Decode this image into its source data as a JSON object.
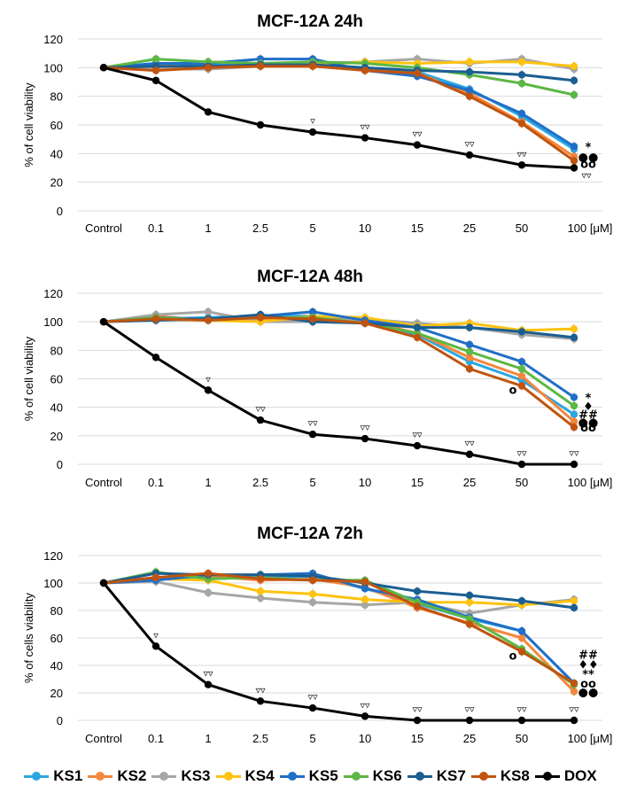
{
  "figure": {
    "legend_title": ""
  },
  "series_meta": [
    {
      "name": "KS1",
      "color": "#2ba6e0"
    },
    {
      "name": "KS2",
      "color": "#f5873b"
    },
    {
      "name": "KS3",
      "color": "#a6a6a6"
    },
    {
      "name": "KS4",
      "color": "#ffc20e"
    },
    {
      "name": "KS5",
      "color": "#1f6fc8"
    },
    {
      "name": "KS6",
      "color": "#5cb744"
    },
    {
      "name": "KS7",
      "color": "#1b5e91"
    },
    {
      "name": "KS8",
      "color": "#c0540f"
    },
    {
      "name": "DOX",
      "color": "#000000"
    }
  ],
  "chart_data": [
    {
      "type": "line",
      "title": "MCF-12A  24h",
      "ylabel": "% of cell viability",
      "xlabel": "",
      "ylim": [
        0,
        120
      ],
      "yticks": [
        0,
        20,
        40,
        60,
        80,
        100,
        120
      ],
      "categories": [
        "Control",
        "0.1",
        "1",
        "2.5",
        "5",
        "10",
        "15",
        "25",
        "50",
        "100 [μM]"
      ],
      "series": [
        {
          "name": "KS1",
          "values": [
            100,
            101,
            102,
            102,
            102,
            100,
            97,
            85,
            66,
            43
          ]
        },
        {
          "name": "KS2",
          "values": [
            100,
            100,
            101,
            101,
            101,
            99,
            96,
            82,
            62,
            38
          ]
        },
        {
          "name": "KS3",
          "values": [
            100,
            99,
            99,
            101,
            103,
            104,
            106,
            103,
            106,
            99
          ]
        },
        {
          "name": "KS4",
          "values": [
            100,
            102,
            104,
            103,
            102,
            104,
            103,
            104,
            104,
            101
          ]
        },
        {
          "name": "KS5",
          "values": [
            100,
            103,
            103,
            106,
            106,
            98,
            94,
            84,
            68,
            45
          ]
        },
        {
          "name": "KS6",
          "values": [
            100,
            106,
            104,
            103,
            104,
            103,
            100,
            95,
            89,
            81
          ]
        },
        {
          "name": "KS7",
          "values": [
            100,
            101,
            101,
            102,
            102,
            100,
            98,
            97,
            95,
            91
          ]
        },
        {
          "name": "KS8",
          "values": [
            100,
            98,
            100,
            101,
            101,
            98,
            96,
            80,
            61,
            35
          ]
        },
        {
          "name": "DOX",
          "values": [
            100,
            91,
            69,
            60,
            55,
            51,
            46,
            39,
            32,
            30
          ]
        }
      ],
      "annotations": [
        {
          "text": "▿",
          "x": "5",
          "y": 55
        },
        {
          "text": "▿▿",
          "x": "10",
          "y": 51
        },
        {
          "text": "▿▿",
          "x": "15",
          "y": 46
        },
        {
          "text": "▿▿",
          "x": "25",
          "y": 39
        },
        {
          "text": "▿▿",
          "x": "50",
          "y": 32
        },
        {
          "text": "▿▿",
          "x": "100 [μM]",
          "y": 30
        },
        {
          "text": "*",
          "x": "100 [μM]",
          "y": 45
        },
        {
          "text": "●●",
          "x": "100 [μM]",
          "y": 38
        },
        {
          "text": "oo",
          "x": "100 [μM]",
          "y": 33
        }
      ]
    },
    {
      "type": "line",
      "title": "MCF-12A  48h",
      "ylabel": "% of cell viability",
      "xlabel": "",
      "ylim": [
        0,
        120
      ],
      "yticks": [
        0,
        20,
        40,
        60,
        80,
        100,
        120
      ],
      "categories": [
        "Control",
        "0.1",
        "1",
        "2.5",
        "5",
        "10",
        "15",
        "25",
        "50",
        "100 [μM]"
      ],
      "series": [
        {
          "name": "KS1",
          "values": [
            100,
            102,
            103,
            104,
            104,
            100,
            91,
            72,
            59,
            35
          ]
        },
        {
          "name": "KS2",
          "values": [
            100,
            104,
            101,
            101,
            102,
            101,
            92,
            75,
            62,
            30
          ]
        },
        {
          "name": "KS3",
          "values": [
            100,
            105,
            107,
            100,
            100,
            102,
            99,
            96,
            91,
            88
          ]
        },
        {
          "name": "KS4",
          "values": [
            100,
            102,
            101,
            100,
            104,
            103,
            97,
            99,
            94,
            95
          ]
        },
        {
          "name": "KS5",
          "values": [
            100,
            103,
            102,
            104,
            107,
            101,
            96,
            84,
            72,
            47
          ]
        },
        {
          "name": "KS6",
          "values": [
            100,
            103,
            101,
            103,
            103,
            99,
            92,
            79,
            67,
            41
          ]
        },
        {
          "name": "KS7",
          "values": [
            100,
            101,
            102,
            105,
            100,
            99,
            96,
            96,
            93,
            89
          ]
        },
        {
          "name": "KS8",
          "values": [
            100,
            102,
            101,
            103,
            102,
            99,
            89,
            67,
            55,
            26
          ]
        },
        {
          "name": "DOX",
          "values": [
            100,
            75,
            52,
            31,
            21,
            18,
            13,
            7,
            0,
            0
          ]
        }
      ],
      "annotations": [
        {
          "text": "▿",
          "x": "1",
          "y": 52
        },
        {
          "text": "▿▿",
          "x": "2.5",
          "y": 31
        },
        {
          "text": "▿▿",
          "x": "5",
          "y": 21
        },
        {
          "text": "▿▿",
          "x": "10",
          "y": 18
        },
        {
          "text": "▿▿",
          "x": "15",
          "y": 13
        },
        {
          "text": "▿▿",
          "x": "25",
          "y": 7
        },
        {
          "text": "▿▿",
          "x": "50",
          "y": 0
        },
        {
          "text": "▿▿",
          "x": "100 [μM]",
          "y": 0
        },
        {
          "text": "o",
          "x": "50",
          "y": 55
        },
        {
          "text": "*",
          "x": "100 [μM]",
          "y": 47
        },
        {
          "text": "♦",
          "x": "100 [μM]",
          "y": 41
        },
        {
          "text": "##",
          "x": "100 [μM]",
          "y": 35
        },
        {
          "text": "●●",
          "x": "100 [μM]",
          "y": 30
        },
        {
          "text": "oo",
          "x": "100 [μM]",
          "y": 26
        }
      ]
    },
    {
      "type": "line",
      "title": "MCF-12A  72h",
      "ylabel": "% of cells viability",
      "xlabel": "",
      "ylim": [
        0,
        120
      ],
      "yticks": [
        0,
        20,
        40,
        60,
        80,
        100,
        120
      ],
      "categories": [
        "Control",
        "0.1",
        "1",
        "2.5",
        "5",
        "10",
        "15",
        "25",
        "50",
        "100 [μM]"
      ],
      "series": [
        {
          "name": "KS1",
          "values": [
            100,
            103,
            104,
            104,
            105,
            96,
            85,
            74,
            65,
            27
          ]
        },
        {
          "name": "KS2",
          "values": [
            100,
            104,
            105,
            102,
            103,
            97,
            82,
            71,
            60,
            21
          ]
        },
        {
          "name": "KS3",
          "values": [
            100,
            101,
            93,
            89,
            86,
            84,
            86,
            78,
            84,
            88
          ]
        },
        {
          "name": "KS4",
          "values": [
            100,
            103,
            102,
            94,
            92,
            88,
            86,
            86,
            84,
            87
          ]
        },
        {
          "name": "KS5",
          "values": [
            100,
            102,
            106,
            106,
            107,
            96,
            88,
            75,
            65,
            27
          ]
        },
        {
          "name": "KS6",
          "values": [
            100,
            108,
            103,
            104,
            102,
            102,
            86,
            74,
            52,
            26
          ]
        },
        {
          "name": "KS7",
          "values": [
            100,
            107,
            106,
            106,
            105,
            100,
            94,
            91,
            87,
            82
          ]
        },
        {
          "name": "KS8",
          "values": [
            100,
            104,
            107,
            103,
            102,
            101,
            83,
            70,
            50,
            27
          ]
        },
        {
          "name": "DOX",
          "values": [
            100,
            54,
            26,
            14,
            9,
            3,
            0,
            0,
            0,
            0
          ]
        }
      ],
      "annotations": [
        {
          "text": "▿",
          "x": "0.1",
          "y": 54
        },
        {
          "text": "▿▿",
          "x": "1",
          "y": 26
        },
        {
          "text": "▿▿",
          "x": "2.5",
          "y": 14
        },
        {
          "text": "▿▿",
          "x": "5",
          "y": 9
        },
        {
          "text": "▿▿",
          "x": "10",
          "y": 3
        },
        {
          "text": "▿▿",
          "x": "15",
          "y": 0
        },
        {
          "text": "▿▿",
          "x": "25",
          "y": 0
        },
        {
          "text": "▿▿",
          "x": "50",
          "y": 0
        },
        {
          "text": "▿▿",
          "x": "100 [μM]",
          "y": 0
        },
        {
          "text": "o",
          "x": "50",
          "y": 50
        },
        {
          "text": "##",
          "x": "100 [μM]",
          "y": 48
        },
        {
          "text": "♦♦",
          "x": "100 [μM]",
          "y": 41
        },
        {
          "text": "**",
          "x": "100 [μM]",
          "y": 34
        },
        {
          "text": "oo",
          "x": "100 [μM]",
          "y": 27
        },
        {
          "text": "●●",
          "x": "100 [μM]",
          "y": 21
        }
      ]
    }
  ]
}
